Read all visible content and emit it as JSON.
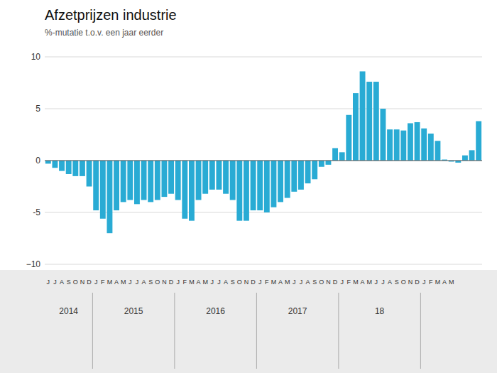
{
  "chart_data": {
    "type": "bar",
    "title": "Afzetprijzen industrie",
    "subtitle": "%-mutatie t.o.v. een jaar eerder",
    "color": "#29ABD4",
    "categories": [
      "J",
      "J",
      "A",
      "S",
      "O",
      "N",
      "D",
      "J",
      "F",
      "M",
      "A",
      "M",
      "J",
      "J",
      "A",
      "S",
      "O",
      "N",
      "D",
      "J",
      "F",
      "M",
      "A",
      "M",
      "J",
      "J",
      "A",
      "S",
      "O",
      "N",
      "D",
      "J",
      "F",
      "M",
      "A",
      "M",
      "J",
      "J",
      "A",
      "S",
      "O",
      "N",
      "D",
      "J",
      "F",
      "M",
      "A",
      "M",
      "J",
      "J",
      "A",
      "S",
      "O",
      "N",
      "D",
      "J",
      "F",
      "M",
      "A",
      "M",
      null,
      null,
      null,
      null
    ],
    "values": [
      -0.3,
      -0.7,
      -1.0,
      -1.3,
      -1.5,
      -1.5,
      -2.5,
      -4.8,
      -5.6,
      -7.0,
      -4.8,
      -4.0,
      -3.8,
      -4.2,
      -3.8,
      -4.0,
      -3.8,
      -3.5,
      -3.2,
      -3.8,
      -5.6,
      -5.8,
      -3.8,
      -3.2,
      -2.8,
      -2.8,
      -3.2,
      -3.8,
      -5.8,
      -5.8,
      -4.8,
      -4.8,
      -5.0,
      -4.5,
      -4.0,
      -3.6,
      -3.0,
      -2.8,
      -2.2,
      -1.8,
      -0.6,
      -0.4,
      1.2,
      0.8,
      4.4,
      6.5,
      8.6,
      7.6,
      7.6,
      5.0,
      3.0,
      3.0,
      2.9,
      3.6,
      3.7,
      3.1,
      2.6,
      1.9,
      0.1,
      -0.1,
      -0.2,
      0.5,
      1.0,
      3.8
    ],
    "groups": [
      {
        "label": "2014",
        "start": 0,
        "end": 6
      },
      {
        "label": "2015",
        "start": 7,
        "end": 18
      },
      {
        "label": "2016",
        "start": 19,
        "end": 30
      },
      {
        "label": "2017",
        "start": 31,
        "end": 42
      },
      {
        "label": "18",
        "start": 43,
        "end": 54
      }
    ],
    "ylim": [
      -10,
      10
    ],
    "yticks": [
      {
        "value": -10,
        "label": "−10"
      },
      -5,
      0,
      5,
      10
    ],
    "grid": true
  }
}
